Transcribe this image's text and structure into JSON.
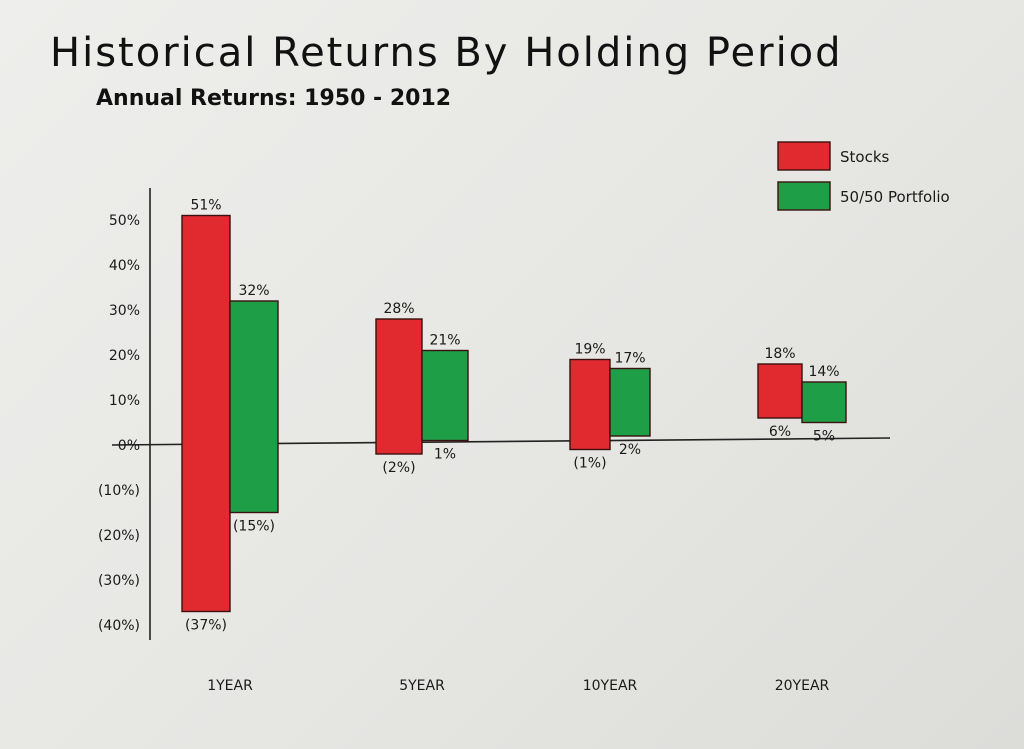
{
  "title": "Historical Returns By Holding Period",
  "subtitle": "Annual Returns: 1950 - 2012",
  "chart_data": {
    "type": "bar",
    "subtype": "floating-range",
    "categories": [
      "1YEAR",
      "5YEAR",
      "10YEAR",
      "20YEAR"
    ],
    "series": [
      {
        "name": "Stocks",
        "color": "#e02a2f",
        "high": [
          51,
          28,
          19,
          18
        ],
        "low": [
          -37,
          -2,
          -1,
          6
        ],
        "high_labels": [
          "51%",
          "28%",
          "19%",
          "18%"
        ],
        "low_labels": [
          "(37%)",
          "(2%)",
          "(1%)",
          "6%"
        ]
      },
      {
        "name": "50/50 Portfolio",
        "color": "#1f9e48",
        "high": [
          32,
          21,
          17,
          14
        ],
        "low": [
          -15,
          1,
          2,
          5
        ],
        "high_labels": [
          "32%",
          "21%",
          "17%",
          "14%"
        ],
        "low_labels": [
          "(15%)",
          "1%",
          "2%",
          "5%"
        ]
      }
    ],
    "y_ticks": [
      50,
      40,
      30,
      20,
      10,
      0,
      -10,
      -20,
      -30,
      -40
    ],
    "y_tick_labels": [
      "50%",
      "40%",
      "30%",
      "20%",
      "10%",
      "0%",
      "(10%)",
      "(20%)",
      "(30%)",
      "(40%)"
    ],
    "ylim": [
      -40,
      56
    ],
    "grid": false,
    "legend_position": "top-right"
  }
}
